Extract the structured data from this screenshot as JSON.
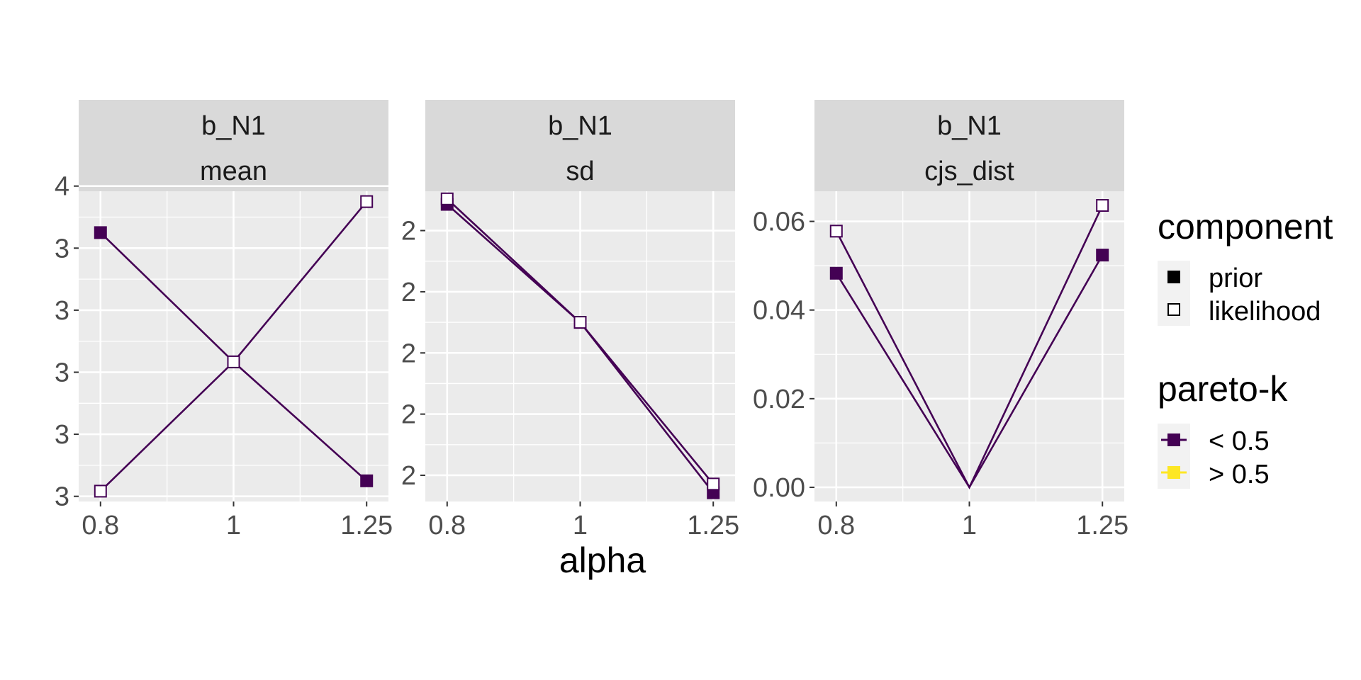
{
  "chart_data": {
    "type": "line",
    "xlabel": "alpha",
    "x_ticks": [
      "0.8",
      "1",
      "1.25"
    ],
    "panels": [
      {
        "strip": [
          "b_N1",
          "mean"
        ],
        "y_ticks": [
          "3",
          "3",
          "3",
          "3",
          "3",
          "4"
        ],
        "series": [
          {
            "component": "prior",
            "pareto_k": "< 0.5",
            "x": [
              0.8,
              1,
              1.25
            ],
            "y": [
              3.91,
              3.66,
              3.43
            ]
          },
          {
            "component": "likelihood",
            "pareto_k": "< 0.5",
            "x": [
              0.8,
              1,
              1.25
            ],
            "y": [
              3.41,
              3.66,
              3.97
            ]
          }
        ]
      },
      {
        "strip": [
          "b_N1",
          "sd"
        ],
        "y_ticks": [
          "2",
          "2",
          "2",
          "2",
          "2"
        ],
        "series": [
          {
            "component": "prior",
            "pareto_k": "< 0.5",
            "x": [
              0.8,
              1,
              1.25
            ],
            "y": [
              1.984,
              1.876,
              1.72
            ]
          },
          {
            "component": "likelihood",
            "pareto_k": "< 0.5",
            "x": [
              0.8,
              1,
              1.25
            ],
            "y": [
              1.989,
              1.876,
              1.728
            ]
          }
        ]
      },
      {
        "strip": [
          "b_N1",
          "cjs_dist"
        ],
        "y_ticks": [
          "0.00",
          "0.02",
          "0.04",
          "0.06"
        ],
        "series": [
          {
            "component": "prior",
            "pareto_k": "< 0.5",
            "x": [
              0.8,
              1,
              1.25
            ],
            "y": [
              0.0483,
              0.0,
              0.0524
            ]
          },
          {
            "component": "likelihood",
            "pareto_k": "< 0.5",
            "x": [
              0.8,
              1,
              1.25
            ],
            "y": [
              0.0578,
              0.0,
              0.0636
            ]
          }
        ]
      }
    ],
    "legend": {
      "placement": "right",
      "component": {
        "title": "component",
        "items": [
          "prior",
          "likelihood"
        ]
      },
      "pareto_k": {
        "title": "pareto-k",
        "items": [
          "< 0.5",
          "> 0.5"
        ]
      }
    },
    "colors": {
      "low_k": "#440154",
      "high_k": "#FDE725",
      "panel_bg": "#EBEBEB",
      "strip_bg": "#D9D9D9",
      "grid": "#FFFFFF"
    }
  }
}
